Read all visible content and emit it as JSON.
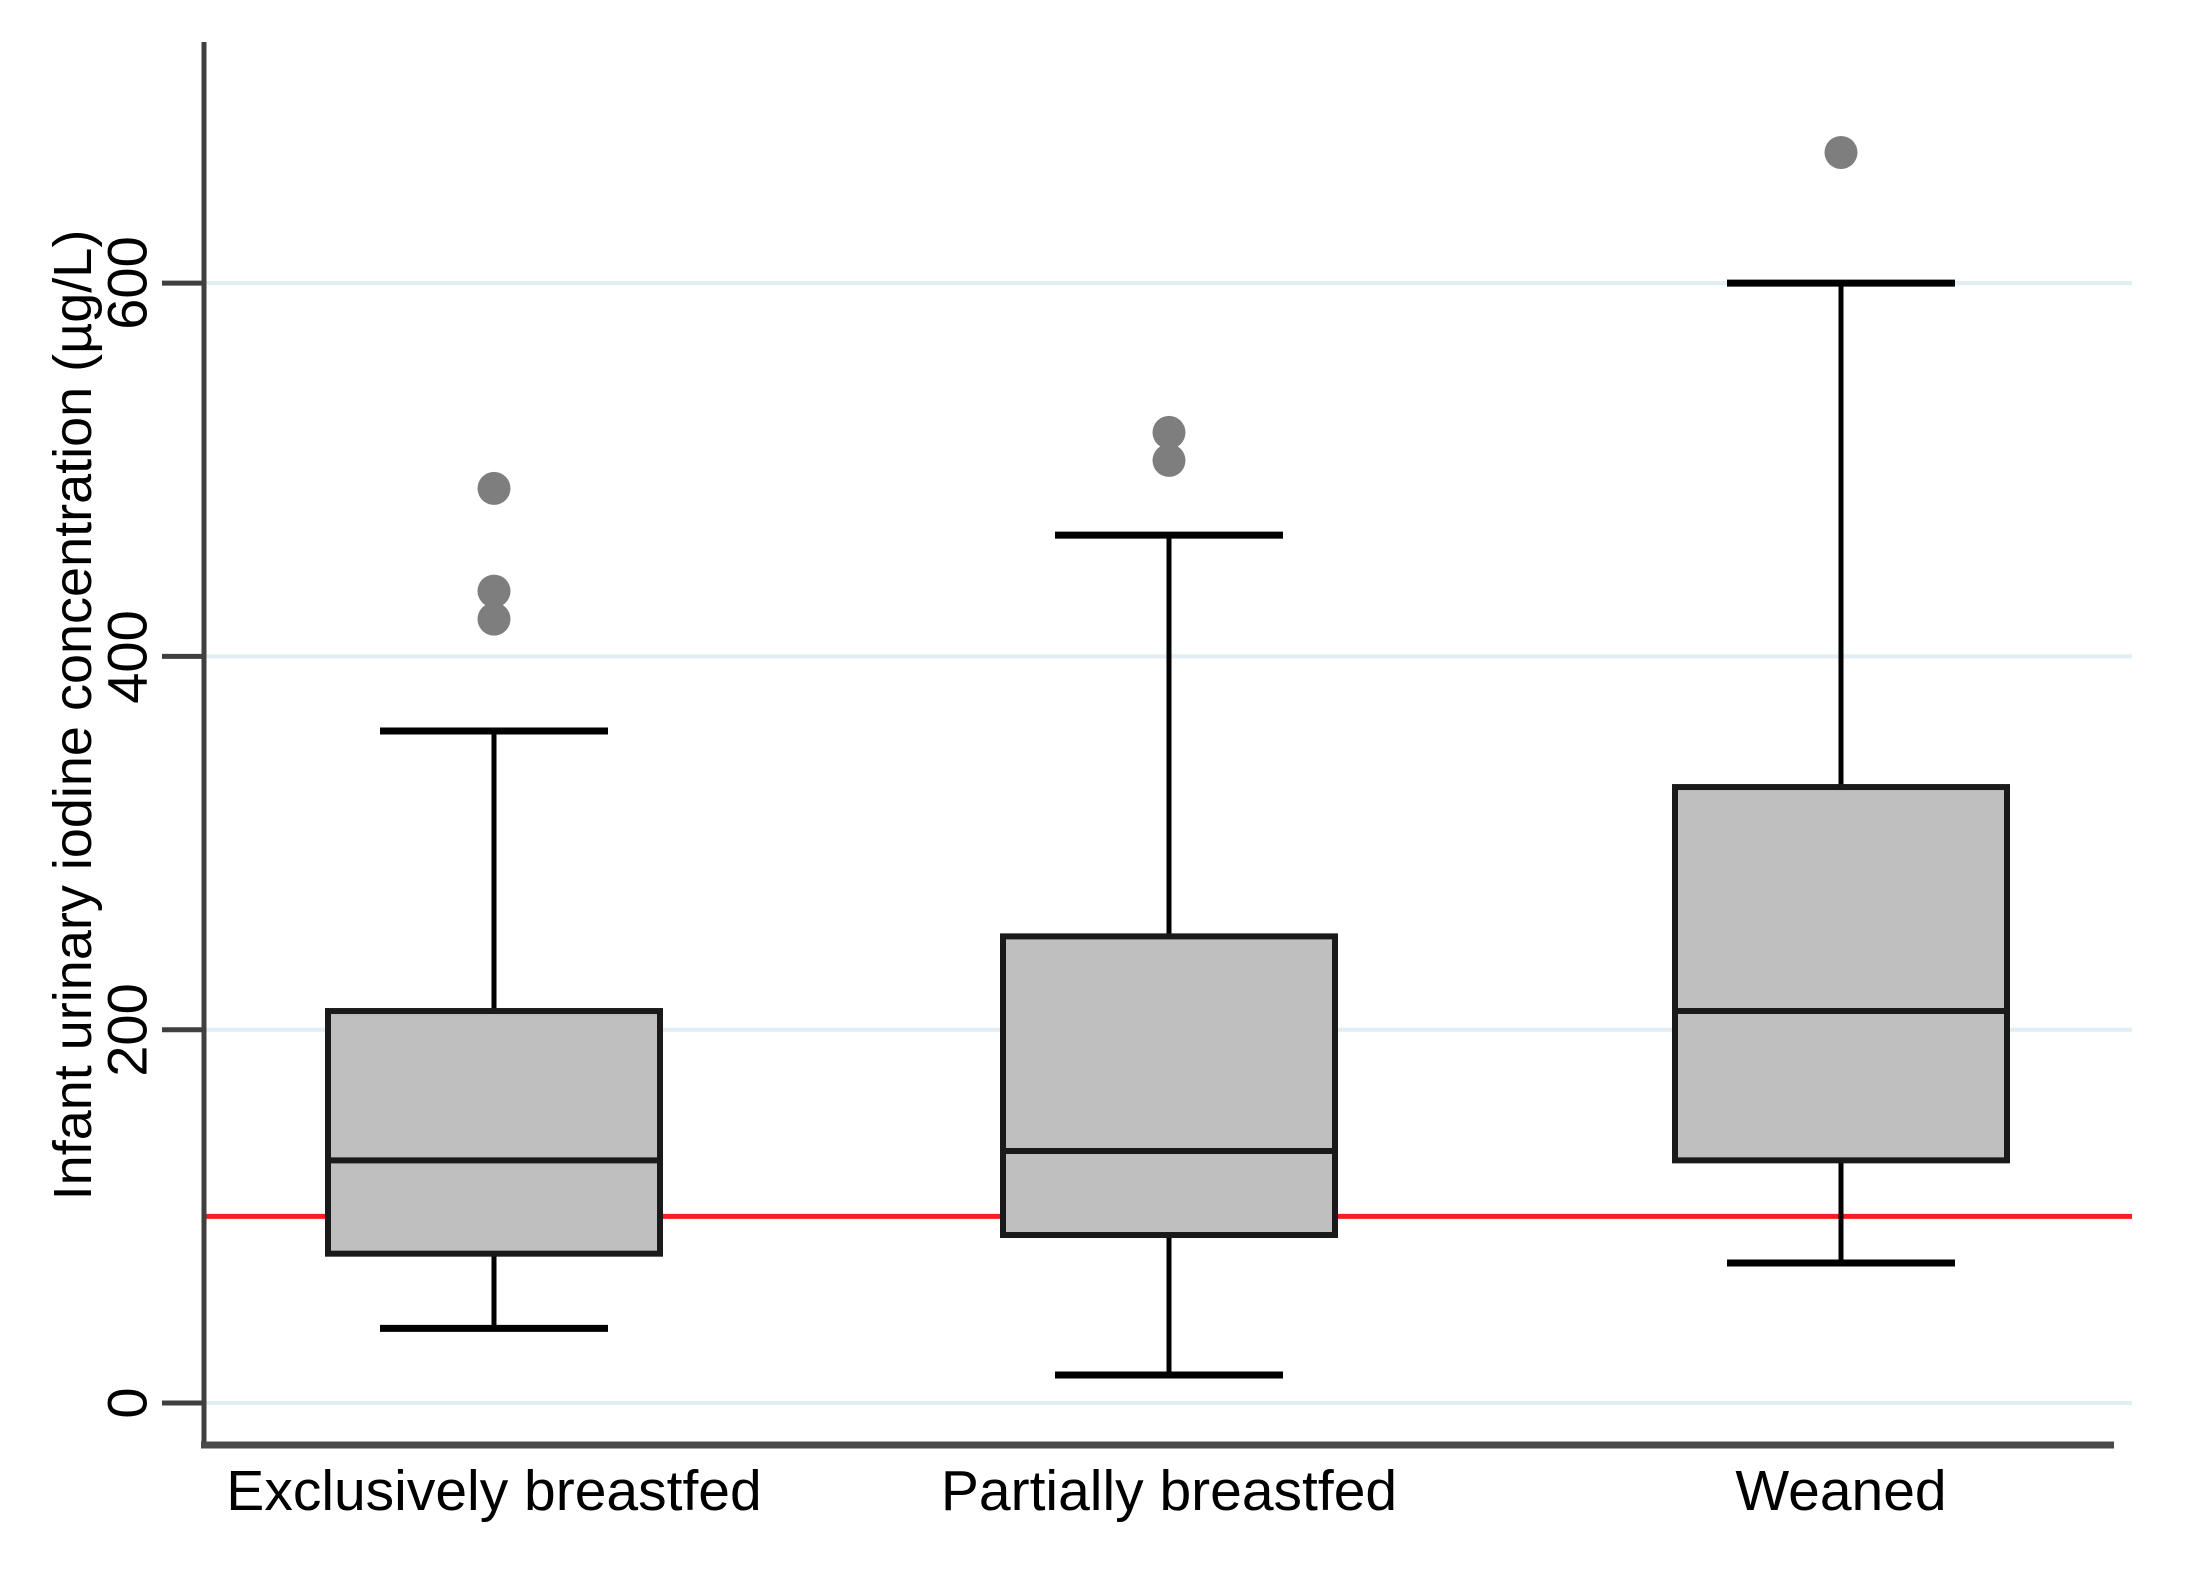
{
  "chart_data": {
    "type": "boxplot",
    "ylabel": "Infant urinary iodine concentration (µg/L)",
    "categories": [
      "Exclusively breastfed",
      "Partially breastfed",
      "Weaned"
    ],
    "yticks": [
      0,
      200,
      400,
      600
    ],
    "ylim": [
      0,
      730
    ],
    "grid": "horizontal",
    "legend": "none",
    "reference_line": {
      "value": 100,
      "color": "#f91d1d"
    },
    "series": [
      {
        "name": "Exclusively breastfed",
        "lower_whisker": 40,
        "q1": 80,
        "median": 130,
        "q3": 210,
        "upper_whisker": 360,
        "outliers": [
          420,
          435,
          490
        ]
      },
      {
        "name": "Partially breastfed",
        "lower_whisker": 15,
        "q1": 90,
        "median": 135,
        "q3": 250,
        "upper_whisker": 465,
        "outliers": [
          505,
          520
        ]
      },
      {
        "name": "Weaned",
        "lower_whisker": 75,
        "q1": 130,
        "median": 210,
        "q3": 330,
        "upper_whisker": 600,
        "outliers": [
          670
        ]
      }
    ],
    "colors": {
      "box_fill": "#bfbfbf",
      "box_stroke": "#1a1a1a",
      "outlier": "#7e7e7e",
      "gridline": "#e1eef5",
      "y_axis": "#3f3f3f",
      "x_axis": "#4a4a4a",
      "text": "#000000"
    }
  }
}
